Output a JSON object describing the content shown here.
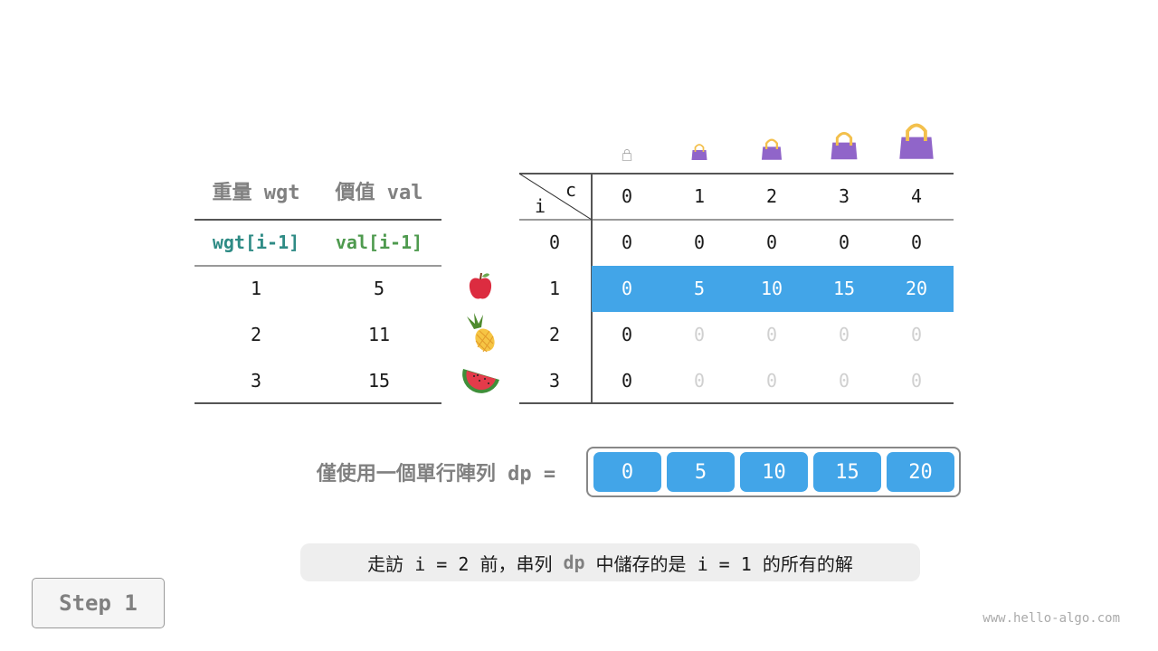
{
  "items_table": {
    "headers": [
      "重量 wgt",
      "價值 val"
    ],
    "subheaders": [
      "wgt[i-1]",
      "val[i-1]"
    ],
    "subheader_colors": [
      "#2e8b85",
      "#4e9a4e"
    ],
    "rows": [
      {
        "wgt": "1",
        "val": "5",
        "icon": "apple-icon"
      },
      {
        "wgt": "2",
        "val": "11",
        "icon": "pineapple-icon"
      },
      {
        "wgt": "3",
        "val": "15",
        "icon": "watermelon-icon"
      }
    ]
  },
  "dp_table": {
    "corner_c": "c",
    "corner_i": "i",
    "capacities": [
      "0",
      "1",
      "2",
      "3",
      "4"
    ],
    "capacity_icon": "bag-icon",
    "row_labels": [
      "0",
      "1",
      "2",
      "3"
    ],
    "rows": [
      [
        "0",
        "0",
        "0",
        "0",
        "0"
      ],
      [
        "0",
        "5",
        "10",
        "15",
        "20"
      ],
      [
        "0",
        "0",
        "0",
        "0",
        "0"
      ],
      [
        "0",
        "0",
        "0",
        "0",
        "0"
      ]
    ],
    "highlight_row": 1,
    "highlight_color": "#42a5e8"
  },
  "dp_array": {
    "label": "僅使用一個單行陣列 dp =",
    "values": [
      "0",
      "5",
      "10",
      "15",
      "20"
    ]
  },
  "caption": {
    "before": "走訪 i = 2 前，串列",
    "code": "dp",
    "after": "中儲存的是 i = 1 的所有的解"
  },
  "step_button": "Step 1",
  "watermark": "www.hello-algo.com"
}
